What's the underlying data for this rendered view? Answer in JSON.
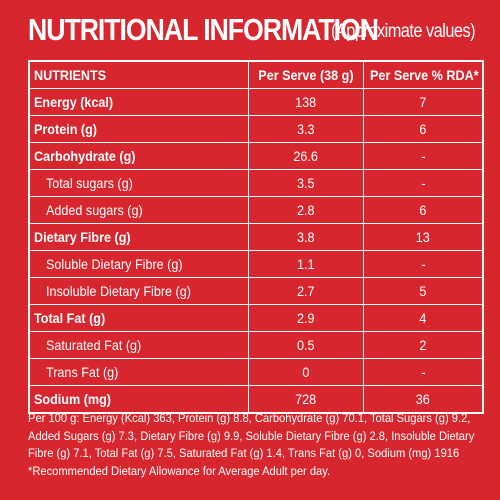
{
  "title": {
    "main": "NUTRITIONAL INFORMATION",
    "sub": "(Approximate values)"
  },
  "table": {
    "headers": [
      "NUTRIENTS",
      "Per Serve (38 g)",
      "Per Serve % RDA*"
    ],
    "rows": [
      {
        "name": "Energy (kcal)",
        "per_serve": "138",
        "rda": "7"
      },
      {
        "name": "Protein (g)",
        "per_serve": "3.3",
        "rda": "6"
      },
      {
        "name": "Carbohydrate (g)",
        "per_serve": "26.6",
        "rda": "-"
      },
      {
        "name": "Total sugars (g)",
        "per_serve": "3.5",
        "rda": "-"
      },
      {
        "name": "Added sugars (g)",
        "per_serve": "2.8",
        "rda": "6"
      },
      {
        "name": "Dietary Fibre (g)",
        "per_serve": "3.8",
        "rda": "13"
      },
      {
        "name": "Soluble Dietary Fibre (g)",
        "per_serve": "1.1",
        "rda": "-"
      },
      {
        "name": "Insoluble Dietary Fibre (g)",
        "per_serve": "2.7",
        "rda": "5"
      },
      {
        "name": "Total Fat (g)",
        "per_serve": "2.9",
        "rda": "4"
      },
      {
        "name": "Saturated Fat (g)",
        "per_serve": "0.5",
        "rda": "2"
      },
      {
        "name": "Trans Fat (g)",
        "per_serve": "0",
        "rda": "-"
      },
      {
        "name": "Sodium (mg)",
        "per_serve": "728",
        "rda": "36"
      }
    ]
  },
  "footer": {
    "line1": "Per 100 g: Energy (Kcal) 363, Protein (g) 8.8, Carbohydrate (g) 70.1, Total Sugars (g) 9.2,",
    "line2": "Added Sugars (g) 7.3, Dietary Fibre (g) 9.9, Soluble Dietary Fibre (g) 2.8, Insoluble Dietary",
    "line3": "Fibre (g) 7.1, Total Fat (g) 7.5, Saturated Fat (g) 1.4, Trans Fat (g) 0, Sodium (mg) 1916",
    "line4": "*Recommended Dietary Allowance for Average Adult per day."
  },
  "colors": {
    "background": "#d8262e",
    "text": "#ffffff"
  }
}
